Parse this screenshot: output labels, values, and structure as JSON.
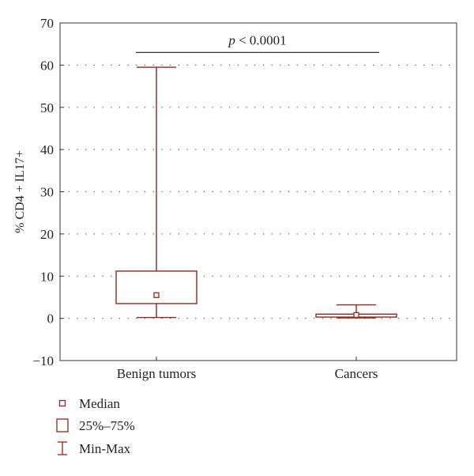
{
  "chart_data": {
    "type": "box",
    "ylabel": "% CD4 + IL17+",
    "ylim": [
      -10,
      70
    ],
    "yticks": [
      -10,
      0,
      10,
      20,
      30,
      40,
      50,
      60,
      70
    ],
    "grid": "horizontal-dotted",
    "categories": [
      "Benign tumors",
      "Cancers"
    ],
    "boxes": [
      {
        "category": "Benign tumors",
        "min": 0.2,
        "q1": 3.5,
        "median": 5.5,
        "q3": 11.2,
        "max": 59.5
      },
      {
        "category": "Cancers",
        "min": 0.1,
        "q1": 0.3,
        "median": 0.8,
        "q3": 1.0,
        "max": 3.2
      }
    ],
    "annotation": {
      "italic": "p",
      "rest": " < 0.0001",
      "y": 63
    },
    "legend": {
      "position": "bottom-left",
      "items": [
        {
          "symbol": "median",
          "label": "Median"
        },
        {
          "symbol": "box",
          "label": "25%–75%"
        },
        {
          "symbol": "whisker",
          "label": "Min-Max"
        }
      ]
    },
    "colors": {
      "mark": "#8b2a1f",
      "axis": "#333333",
      "grid": "#555555"
    }
  }
}
